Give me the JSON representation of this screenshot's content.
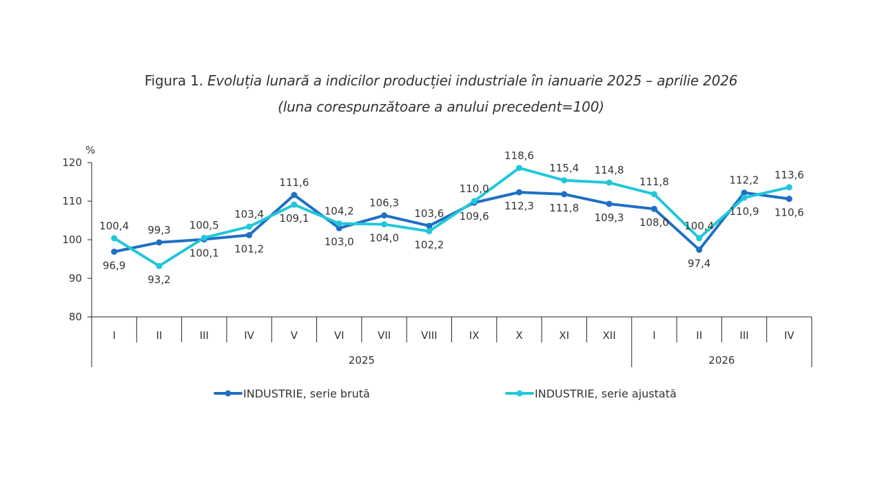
{
  "chart_data": {
    "type": "line",
    "title_prefix": "Figura 1. ",
    "title_main": "Evoluția lunară a indicilor producției industriale în ianuarie 2025 – aprilie 2026",
    "subtitle": "(luna corespunzătoare a anului precedent=100)",
    "ylabel": "%",
    "ylim": [
      80,
      120
    ],
    "yticks": [
      "80",
      "90",
      "100",
      "110",
      "120"
    ],
    "categories": [
      "I",
      "II",
      "III",
      "IV",
      "V",
      "VI",
      "VII",
      "VIII",
      "IX",
      "X",
      "XI",
      "XII",
      "I",
      "II",
      "III",
      "IV"
    ],
    "years": [
      {
        "label": "2025",
        "start": 0,
        "end": 11
      },
      {
        "label": "2026",
        "start": 12,
        "end": 15
      }
    ],
    "series": [
      {
        "name": "INDUSTRIE, serie brută",
        "color": "#1f6fc4",
        "values": [
          96.9,
          99.3,
          100.1,
          101.2,
          111.6,
          103.0,
          106.3,
          103.6,
          109.6,
          112.3,
          111.8,
          109.3,
          108.0,
          97.4,
          112.2,
          110.6
        ],
        "labels": [
          "96,9",
          "99,3",
          "100,1",
          "101,2",
          "111,6",
          "103,0",
          "106,3",
          "103,6",
          "109,6",
          "112,3",
          "111,8",
          "109,3",
          "108,0",
          "97,4",
          "112,2",
          "110,6"
        ],
        "label_pos": [
          "below",
          "above",
          "below",
          "below",
          "above",
          "below",
          "above",
          "above",
          "below",
          "below",
          "below",
          "below",
          "below",
          "below",
          "above",
          "below"
        ]
      },
      {
        "name": "INDUSTRIE, serie ajustată",
        "color": "#22c7d9",
        "values": [
          100.4,
          93.2,
          100.5,
          103.4,
          109.1,
          104.2,
          104.0,
          102.2,
          110.0,
          118.6,
          115.4,
          114.8,
          111.8,
          100.4,
          110.9,
          113.6
        ],
        "labels": [
          "100,4",
          "93,2",
          "100,5",
          "103,4",
          "109,1",
          "104,2",
          "104,0",
          "102,2",
          "110,0",
          "118,6",
          "115,4",
          "114,8",
          "111,8",
          "100,4",
          "110,9",
          "113,6"
        ],
        "label_pos": [
          "above",
          "below",
          "above",
          "above",
          "below",
          "above",
          "below",
          "below",
          "above",
          "above",
          "above",
          "above",
          "above",
          "above",
          "below",
          "above"
        ]
      }
    ],
    "legend_position": "bottom-center",
    "grid": false
  }
}
